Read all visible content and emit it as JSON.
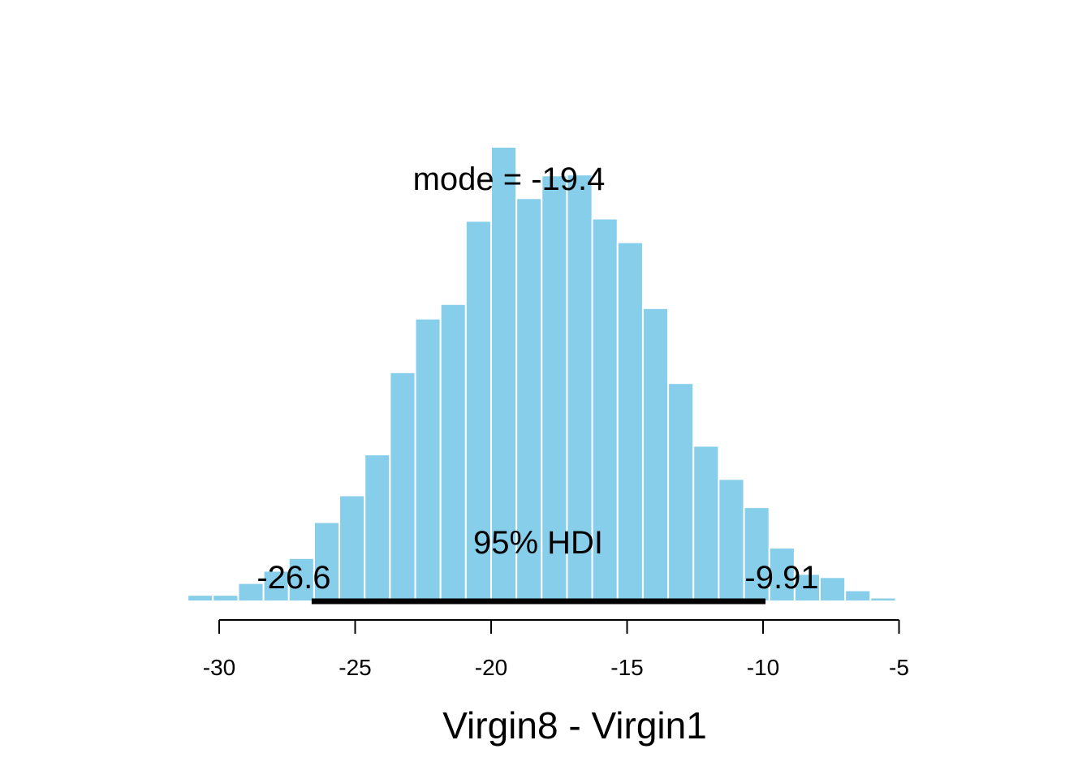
{
  "chart_data": {
    "type": "bar",
    "title": "",
    "xlabel": "Virgin8 - Virgin1",
    "ylabel": "",
    "xlim": [
      -32.1,
      -2.5
    ],
    "ylim": [
      0,
      1.0
    ],
    "x_ticks": [
      -30,
      -25,
      -20,
      -15,
      -10,
      -5
    ],
    "x_tick_labels": [
      "-30",
      "-25",
      "-20",
      "-15",
      "-10",
      "-5"
    ],
    "bar_color": "#87CEEB",
    "bar_edge_color": "#ffffff",
    "bins": [
      {
        "x0": -32.09,
        "x1": -31.16,
        "value": 0.003
      },
      {
        "x0": -31.16,
        "x1": -30.23,
        "value": 0.014
      },
      {
        "x0": -30.23,
        "x1": -29.3,
        "value": 0.014
      },
      {
        "x0": -29.3,
        "x1": -28.37,
        "value": 0.04
      },
      {
        "x0": -28.37,
        "x1": -27.44,
        "value": 0.067
      },
      {
        "x0": -27.44,
        "x1": -26.51,
        "value": 0.095
      },
      {
        "x0": -26.51,
        "x1": -25.58,
        "value": 0.174
      },
      {
        "x0": -25.58,
        "x1": -24.65,
        "value": 0.233
      },
      {
        "x0": -24.65,
        "x1": -23.72,
        "value": 0.323
      },
      {
        "x0": -23.72,
        "x1": -22.79,
        "value": 0.504
      },
      {
        "x0": -22.79,
        "x1": -21.86,
        "value": 0.622
      },
      {
        "x0": -21.86,
        "x1": -20.93,
        "value": 0.654
      },
      {
        "x0": -20.93,
        "x1": -20.0,
        "value": 0.837
      },
      {
        "x0": -20.0,
        "x1": -19.07,
        "value": 1.0
      },
      {
        "x0": -19.07,
        "x1": -18.14,
        "value": 0.887
      },
      {
        "x0": -18.14,
        "x1": -17.21,
        "value": 0.937
      },
      {
        "x0": -17.21,
        "x1": -16.28,
        "value": 0.939
      },
      {
        "x0": -16.28,
        "x1": -15.35,
        "value": 0.842
      },
      {
        "x0": -15.35,
        "x1": -14.42,
        "value": 0.79
      },
      {
        "x0": -14.42,
        "x1": -13.49,
        "value": 0.645
      },
      {
        "x0": -13.49,
        "x1": -12.56,
        "value": 0.48
      },
      {
        "x0": -12.56,
        "x1": -11.63,
        "value": 0.342
      },
      {
        "x0": -11.63,
        "x1": -10.7,
        "value": 0.269
      },
      {
        "x0": -10.7,
        "x1": -9.77,
        "value": 0.207
      },
      {
        "x0": -9.77,
        "x1": -8.84,
        "value": 0.118
      },
      {
        "x0": -8.84,
        "x1": -7.91,
        "value": 0.06
      },
      {
        "x0": -7.91,
        "x1": -6.98,
        "value": 0.053
      },
      {
        "x0": -6.98,
        "x1": -6.05,
        "value": 0.024
      },
      {
        "x0": -6.05,
        "x1": -5.12,
        "value": 0.008
      },
      {
        "x0": -5.12,
        "x1": -4.19,
        "value": 0.003
      },
      {
        "x0": -3.26,
        "x1": -2.33,
        "value": 0.003
      }
    ],
    "mode": {
      "label": "mode = -19.4",
      "value": -19.4
    },
    "hdi": {
      "label": "95% HDI",
      "lower": -26.6,
      "upper": -9.91,
      "lower_label": "-26.6",
      "upper_label": "-9.91"
    }
  }
}
